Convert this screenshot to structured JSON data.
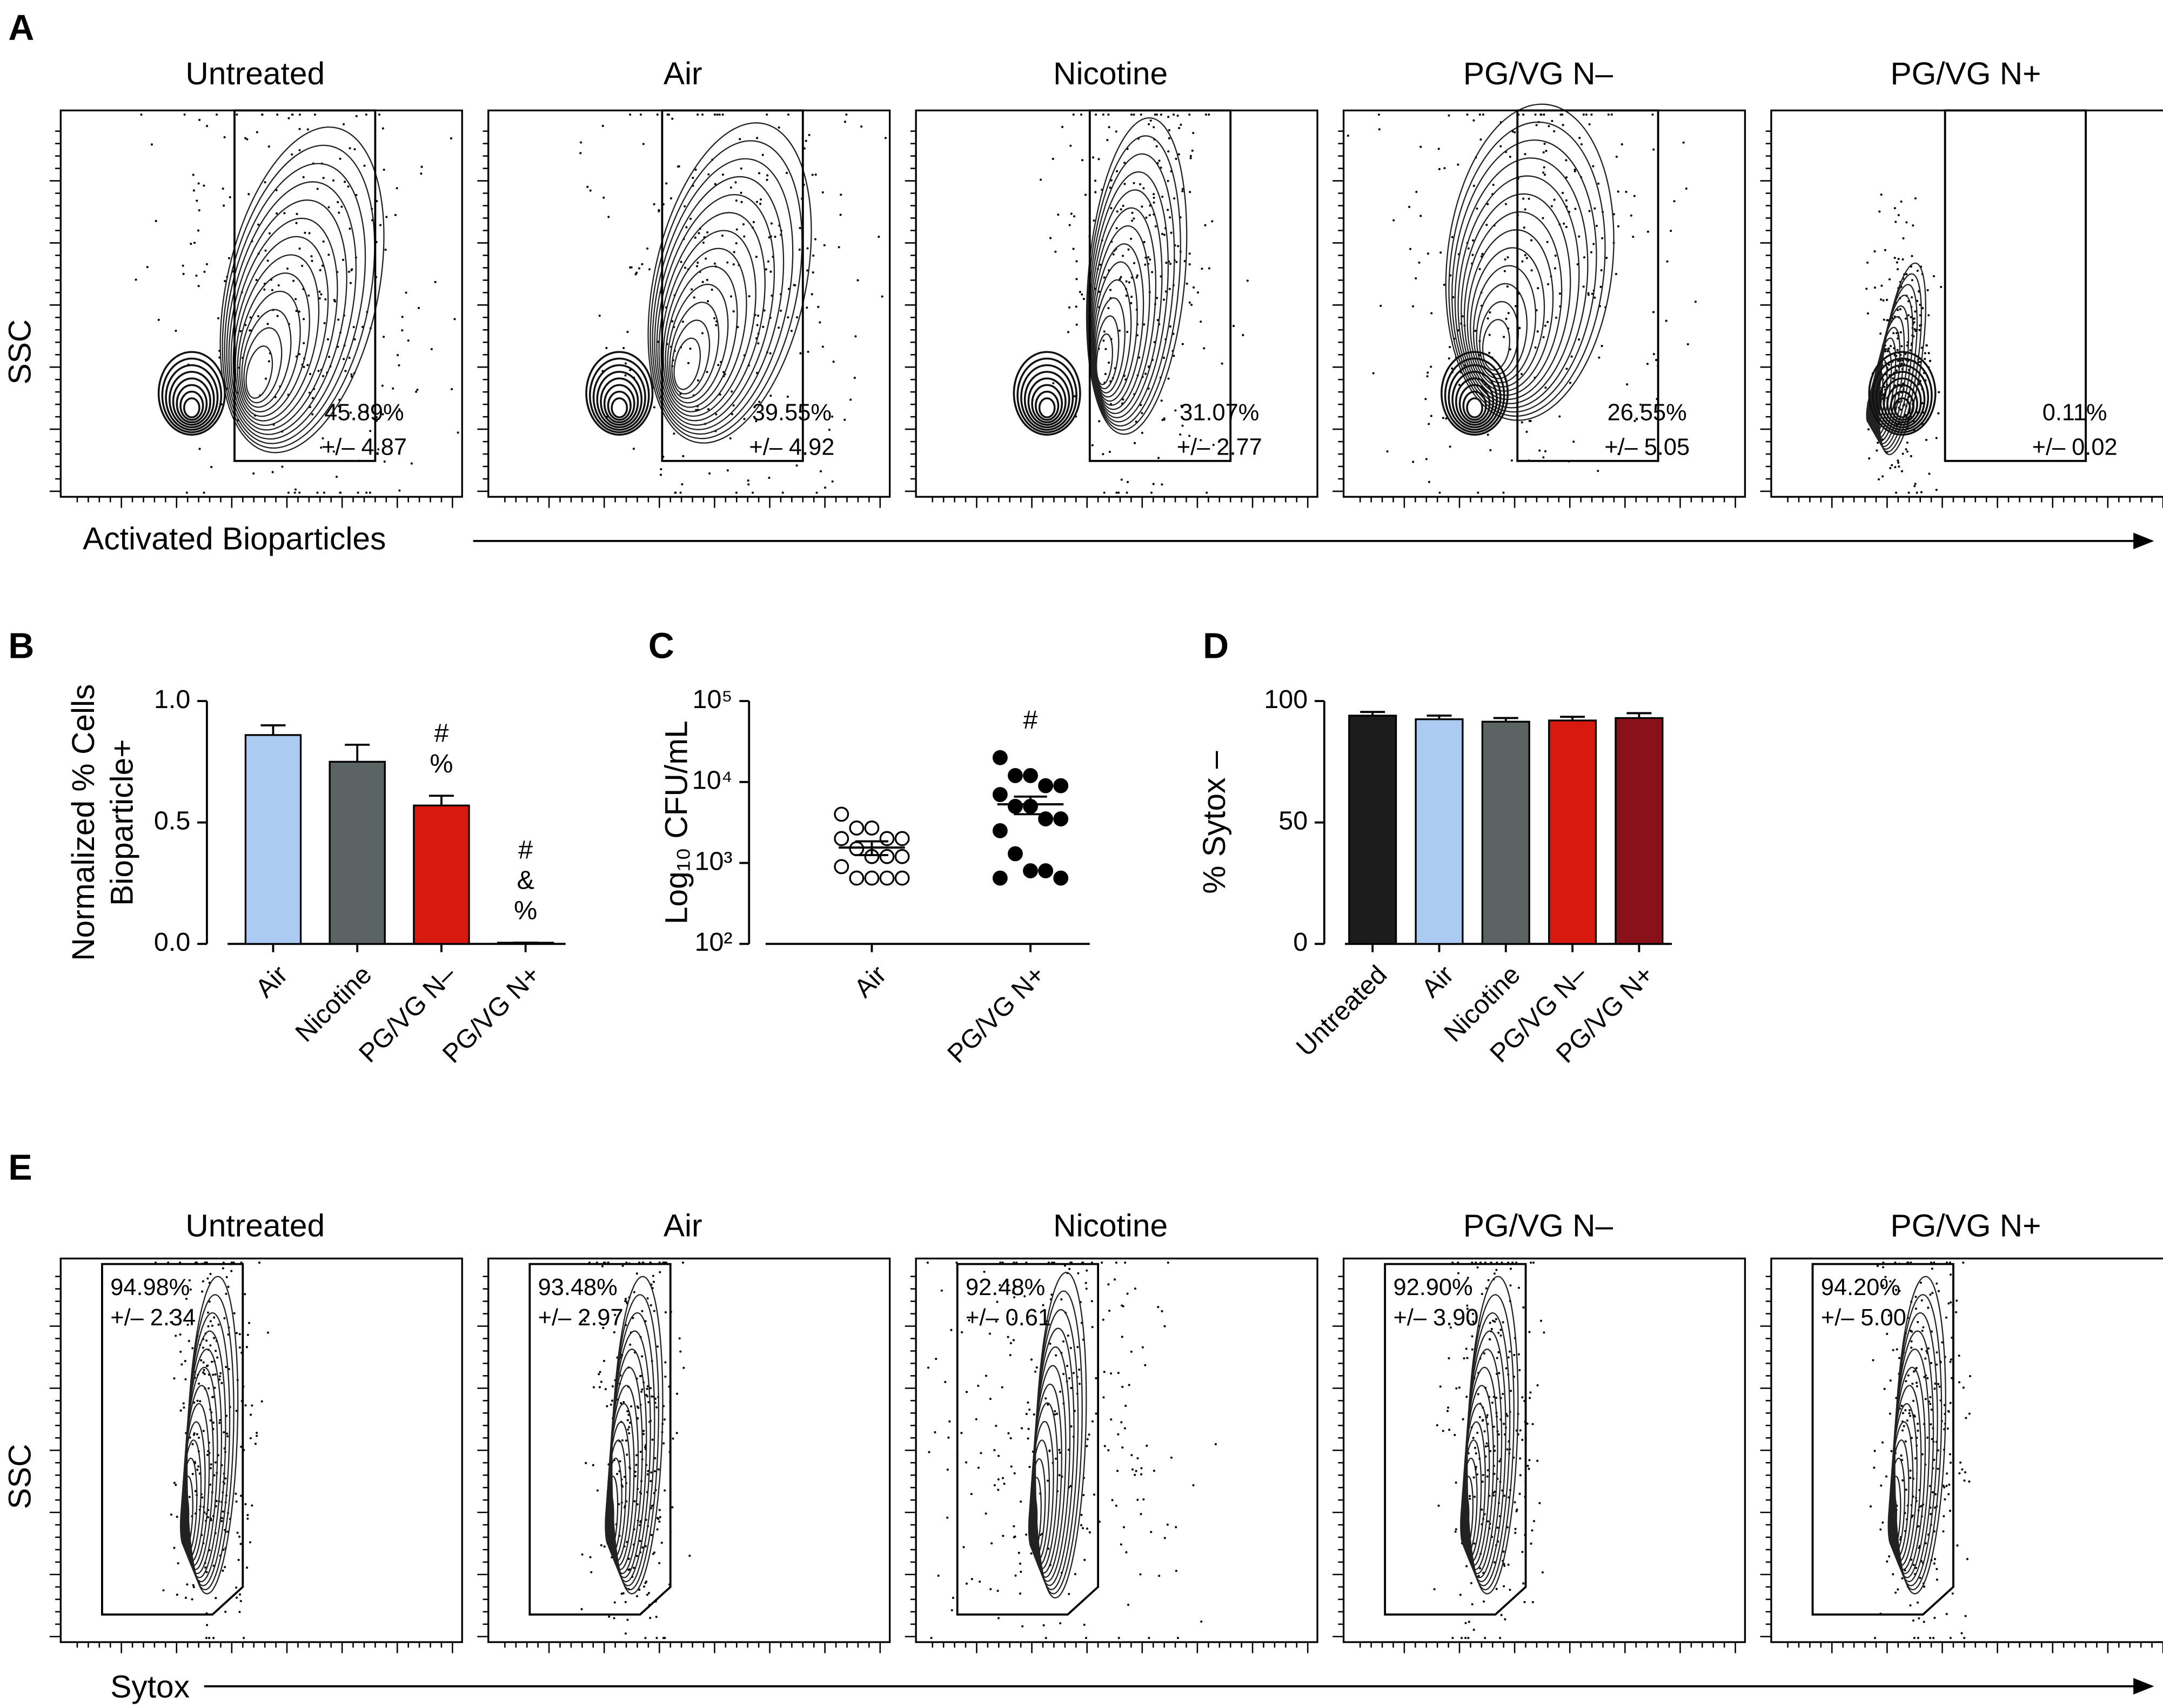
{
  "chart_data": [
    {
      "type": "flow",
      "panel": "A",
      "ylabel": "SSC",
      "xlabel": "Activated Bioparticles",
      "categories": [
        "Untreated",
        "Air",
        "Nicotine",
        "PG/VG N–",
        "PG/VG N+"
      ],
      "values": [
        45.89,
        39.55,
        31.07,
        26.55,
        0.11
      ],
      "value_labels": [
        "45.89%",
        "39.55%",
        "31.07%",
        "26.55%",
        "0.11%"
      ],
      "errors": [
        4.87,
        4.92,
        2.77,
        5.05,
        0.02
      ],
      "error_labels": [
        "+/– 4.87",
        "+/– 4.92",
        "+/– 2.77",
        "+/– 5.05",
        "+/– 0.02"
      ]
    },
    {
      "type": "bar",
      "panel": "B",
      "ylabel": [
        "Normalized % Cells",
        "Bioparticle+"
      ],
      "categories": [
        "Air",
        "Nicotine",
        "PG/VG N–",
        "PG/VG N+"
      ],
      "values": [
        0.86,
        0.75,
        0.57,
        0.005
      ],
      "errors": [
        0.04,
        0.07,
        0.04,
        0
      ],
      "colors": [
        "#abcbf2",
        "#5b6463",
        "#d8190f",
        "#ffffff"
      ],
      "annotations": [
        [],
        [],
        [
          "#",
          "%"
        ],
        [
          "#",
          "&",
          "%"
        ]
      ],
      "ylim": [
        0,
        1
      ],
      "yticks": [
        {
          "value": 0,
          "label": "0.0"
        },
        {
          "value": 0.5,
          "label": "0.5"
        },
        {
          "value": 1,
          "label": "1.0"
        }
      ]
    },
    {
      "type": "scatter",
      "panel": "C",
      "ylabel": "Log₁₀ CFU/mL",
      "log_scale": true,
      "categories": [
        "Air",
        "PG/VG N+"
      ],
      "values": [
        [
          4000,
          2700,
          2700,
          2000,
          2000,
          2000,
          1500,
          1200,
          1200,
          1200,
          900,
          650,
          650,
          650,
          650
        ],
        [
          20000,
          12000,
          12000,
          9000,
          9000,
          7000,
          5000,
          5000,
          3500,
          3500,
          2500,
          1300,
          800,
          800,
          650,
          650
        ]
      ],
      "means": [
        1550,
        5300
      ],
      "sems": [
        300,
        1300
      ],
      "markers": [
        "open",
        "filled"
      ],
      "annotations": [
        [],
        [
          "#"
        ]
      ],
      "ylim": [
        100,
        100000
      ],
      "yticks": [
        {
          "value": 100,
          "label": "10²"
        },
        {
          "value": 1000,
          "label": "10³"
        },
        {
          "value": 10000,
          "label": "10⁴"
        },
        {
          "value": 100000,
          "label": "10⁵"
        }
      ]
    },
    {
      "type": "bar",
      "panel": "D",
      "ylabel": [
        "% Sytox –"
      ],
      "categories": [
        "Untreated",
        "Air",
        "Nicotine",
        "PG/VG N–",
        "PG/VG N+"
      ],
      "values": [
        94,
        92.5,
        91.5,
        92,
        93
      ],
      "errors": [
        1.5,
        1.5,
        1.5,
        1.5,
        2
      ],
      "colors": [
        "#1c1c1c",
        "#abcbf2",
        "#5b6463",
        "#d8190f",
        "#8a1119"
      ],
      "annotations": [
        [],
        [],
        [],
        [],
        []
      ],
      "ylim": [
        0,
        100
      ],
      "yticks": [
        0,
        50,
        100
      ]
    },
    {
      "type": "flow",
      "panel": "E",
      "ylabel": "SSC",
      "xlabel": "Sytox",
      "categories": [
        "Untreated",
        "Air",
        "Nicotine",
        "PG/VG N–",
        "PG/VG N+"
      ],
      "values": [
        94.98,
        93.48,
        92.48,
        92.9,
        94.2
      ],
      "value_labels": [
        "94.98%",
        "93.48%",
        "92.48%",
        "92.90%",
        "94.20%"
      ],
      "errors": [
        2.34,
        2.97,
        0.61,
        3.9,
        5.0
      ],
      "error_labels": [
        "+/– 2.34",
        "+/– 2.97",
        "+/– 0.61",
        "+/– 3.90",
        "+/– 5.00"
      ]
    }
  ]
}
